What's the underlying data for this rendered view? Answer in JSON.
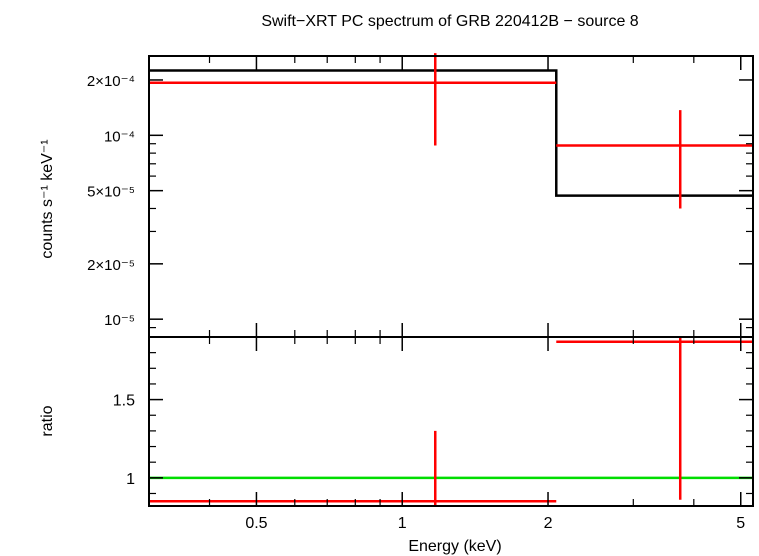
{
  "chart_data": [
    {
      "panel": "spectrum",
      "type": "line",
      "title": "Swift−XRT PC spectrum of GRB 220412B − source 8",
      "xlabel": "Energy (keV)",
      "ylabel": "counts s⁻¹ keV⁻¹",
      "xscale": "log",
      "yscale": "log",
      "xlim": [
        0.3,
        5.3
      ],
      "ylim": [
        8e-06,
        0.00027
      ],
      "x_ticks": [
        {
          "value": 0.5,
          "label": "0.5"
        },
        {
          "value": 1,
          "label": "1"
        },
        {
          "value": 2,
          "label": "2"
        },
        {
          "value": 5,
          "label": "5"
        }
      ],
      "y_ticks": [
        {
          "value": 1e-05,
          "label": "10⁻⁵"
        },
        {
          "value": 2e-05,
          "label": "2×10⁻⁵"
        },
        {
          "value": 5e-05,
          "label": "5×10⁻⁵"
        },
        {
          "value": 0.0001,
          "label": "10⁻⁴"
        },
        {
          "value": 0.0002,
          "label": "2×10⁻⁴"
        }
      ],
      "series": [
        {
          "color": "#000000",
          "style": "step",
          "bins": [
            {
              "x_lo": 0.3,
              "x_hi": 2.08,
              "y": 0.000225
            },
            {
              "x_lo": 2.08,
              "x_hi": 5.3,
              "y": 4.7e-05
            }
          ]
        },
        {
          "color": "#ff0000",
          "style": "errorbar",
          "points": [
            {
              "x": 1.17,
              "x_lo": 0.3,
              "x_hi": 2.08,
              "y": 0.000193,
              "y_lo": 8.8e-05,
              "y_hi": 0.00028
            },
            {
              "x": 3.75,
              "x_lo": 2.08,
              "x_hi": 5.3,
              "y": 8.8e-05,
              "y_lo": 4e-05,
              "y_hi": 0.000137
            }
          ]
        }
      ]
    },
    {
      "panel": "ratio",
      "type": "scatter",
      "xlabel": "Energy (keV)",
      "ylabel": "ratio",
      "xscale": "log",
      "xlim": [
        0.3,
        5.3
      ],
      "ylim": [
        0.82,
        1.9
      ],
      "y_ticks": [
        {
          "value": 1,
          "label": "1"
        },
        {
          "value": 1.5,
          "label": "1.5"
        }
      ],
      "reference_line": {
        "y": 1,
        "color": "#00dd00"
      },
      "series": [
        {
          "color": "#ff0000",
          "style": "errorbar",
          "points": [
            {
              "x": 1.17,
              "x_lo": 0.3,
              "x_hi": 2.08,
              "y": 0.85,
              "y_lo": 0.82,
              "y_hi": 1.3
            },
            {
              "x": 3.75,
              "x_lo": 2.08,
              "x_hi": 5.3,
              "y": 1.87,
              "y_lo": 0.86,
              "y_hi": 1.9
            }
          ]
        }
      ]
    }
  ]
}
